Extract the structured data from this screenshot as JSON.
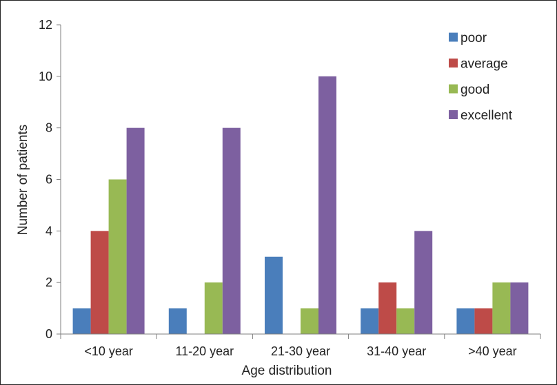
{
  "chart_data": {
    "type": "bar",
    "title": "",
    "xlabel": "Age distribution",
    "ylabel": "Number of patients",
    "ylim": [
      0,
      12
    ],
    "yticks": [
      "0",
      "2",
      "4",
      "6",
      "8",
      "10",
      "12"
    ],
    "grid": false,
    "legend_position": "top-right",
    "categories": [
      "<10 year",
      "11-20 year",
      "21-30 year",
      "31-40 year",
      ">40 year"
    ],
    "series": [
      {
        "name": "poor",
        "color": "#4a7ebb",
        "values": [
          1,
          1,
          3,
          1,
          1
        ]
      },
      {
        "name": "average",
        "color": "#be4b48",
        "values": [
          4,
          0,
          0,
          2,
          1
        ]
      },
      {
        "name": "good",
        "color": "#98b954",
        "values": [
          6,
          2,
          1,
          1,
          2
        ]
      },
      {
        "name": "excellent",
        "color": "#7d60a0",
        "values": [
          8,
          8,
          10,
          4,
          2
        ]
      }
    ]
  }
}
